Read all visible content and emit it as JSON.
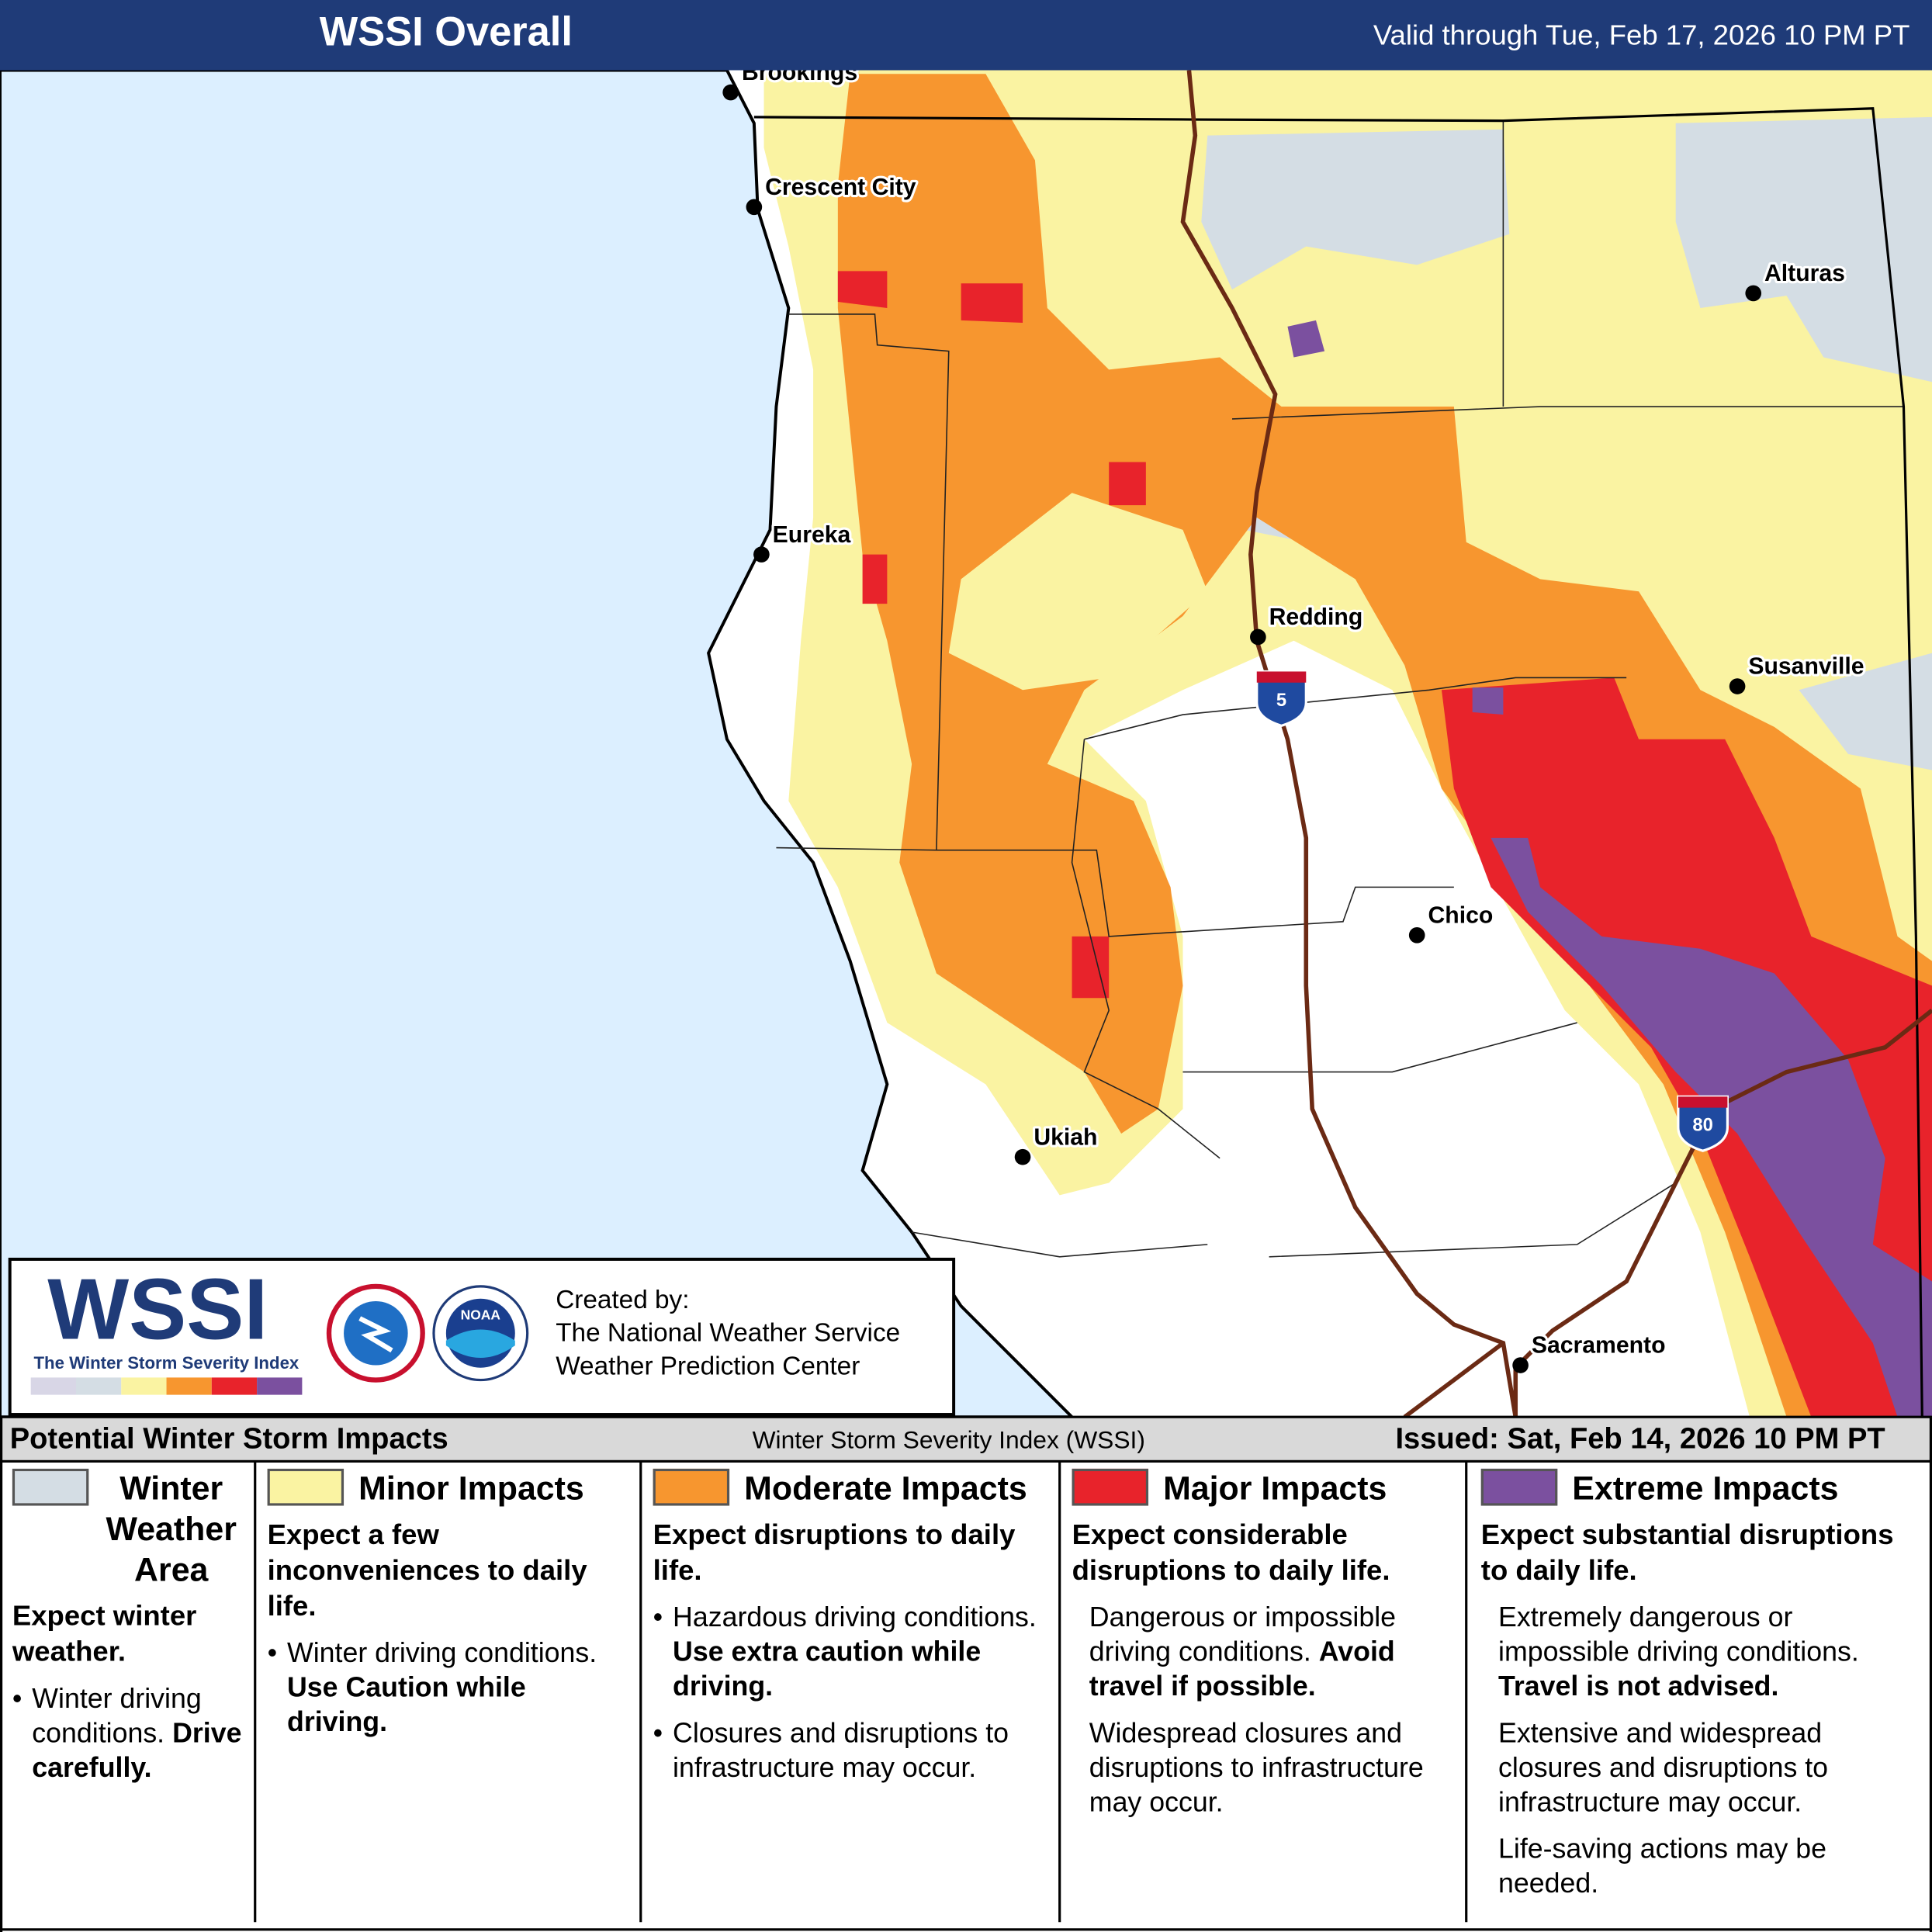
{
  "header": {
    "title": "WSSI Overall",
    "valid": "Valid through Tue, Feb 17, 2026 10 PM PT"
  },
  "map": {
    "cities": [
      "Brookings",
      "Crescent City",
      "Eureka",
      "Redding",
      "Alturas",
      "Susanville",
      "Chico",
      "Ukiah",
      "Sacramento"
    ],
    "highways": [
      "5",
      "80"
    ]
  },
  "credits": {
    "logo": "WSSI",
    "logo_tagline": "The Winter Storm Severity Index",
    "noaa": "NOAA",
    "created_by": "Created by:",
    "lines": [
      "The National Weather Service",
      "Weather Prediction Center"
    ]
  },
  "legend": {
    "title": "Potential Winter Storm Impacts",
    "subtitle": "Winter Storm Severity Index (WSSI)",
    "issued": "Issued: Sat, Feb 14, 2026 10 PM PT",
    "categories": [
      {
        "name": "Winter Weather Area",
        "color": "#d4dde4",
        "list_style": "bullet",
        "summary": "Expect winter weather.",
        "items": [
          {
            "text": "Winter driving conditions.",
            "bold": "Drive carefully."
          }
        ]
      },
      {
        "name": "Minor Impacts",
        "color": "#faf3a2",
        "list_style": "bullet",
        "summary": "Expect a few inconveniences to daily life.",
        "items": [
          {
            "text": "Winter driving conditions.",
            "bold": "Use Caution while driving."
          }
        ]
      },
      {
        "name": "Moderate Impacts",
        "color": "#f7962f",
        "list_style": "bullet",
        "summary": "Expect disruptions to daily life.",
        "items": [
          {
            "text": "Hazardous driving conditions.",
            "bold": "Use extra caution while driving."
          },
          {
            "text": "Closures and disruptions to infrastructure may occur."
          }
        ]
      },
      {
        "name": "Major Impacts",
        "color": "#e8232b",
        "list_style": "plain",
        "summary": "Expect considerable disruptions to daily life.",
        "items": [
          {
            "text": "Dangerous or impossible driving conditions.",
            "bold": "Avoid travel if possible."
          },
          {
            "text": "Widespread closures and disruptions to infrastructure may occur."
          }
        ]
      },
      {
        "name": "Extreme Impacts",
        "color": "#7b509f",
        "list_style": "plain",
        "summary": "Expect substantial disruptions to daily life.",
        "items": [
          {
            "text": "Extremely dangerous or impossible driving conditions.",
            "bold": "Travel is not advised."
          },
          {
            "text": "Extensive and widespread closures and disruptions to infrastructure may occur."
          },
          {
            "text": "Life-saving actions may be needed."
          }
        ]
      }
    ]
  }
}
